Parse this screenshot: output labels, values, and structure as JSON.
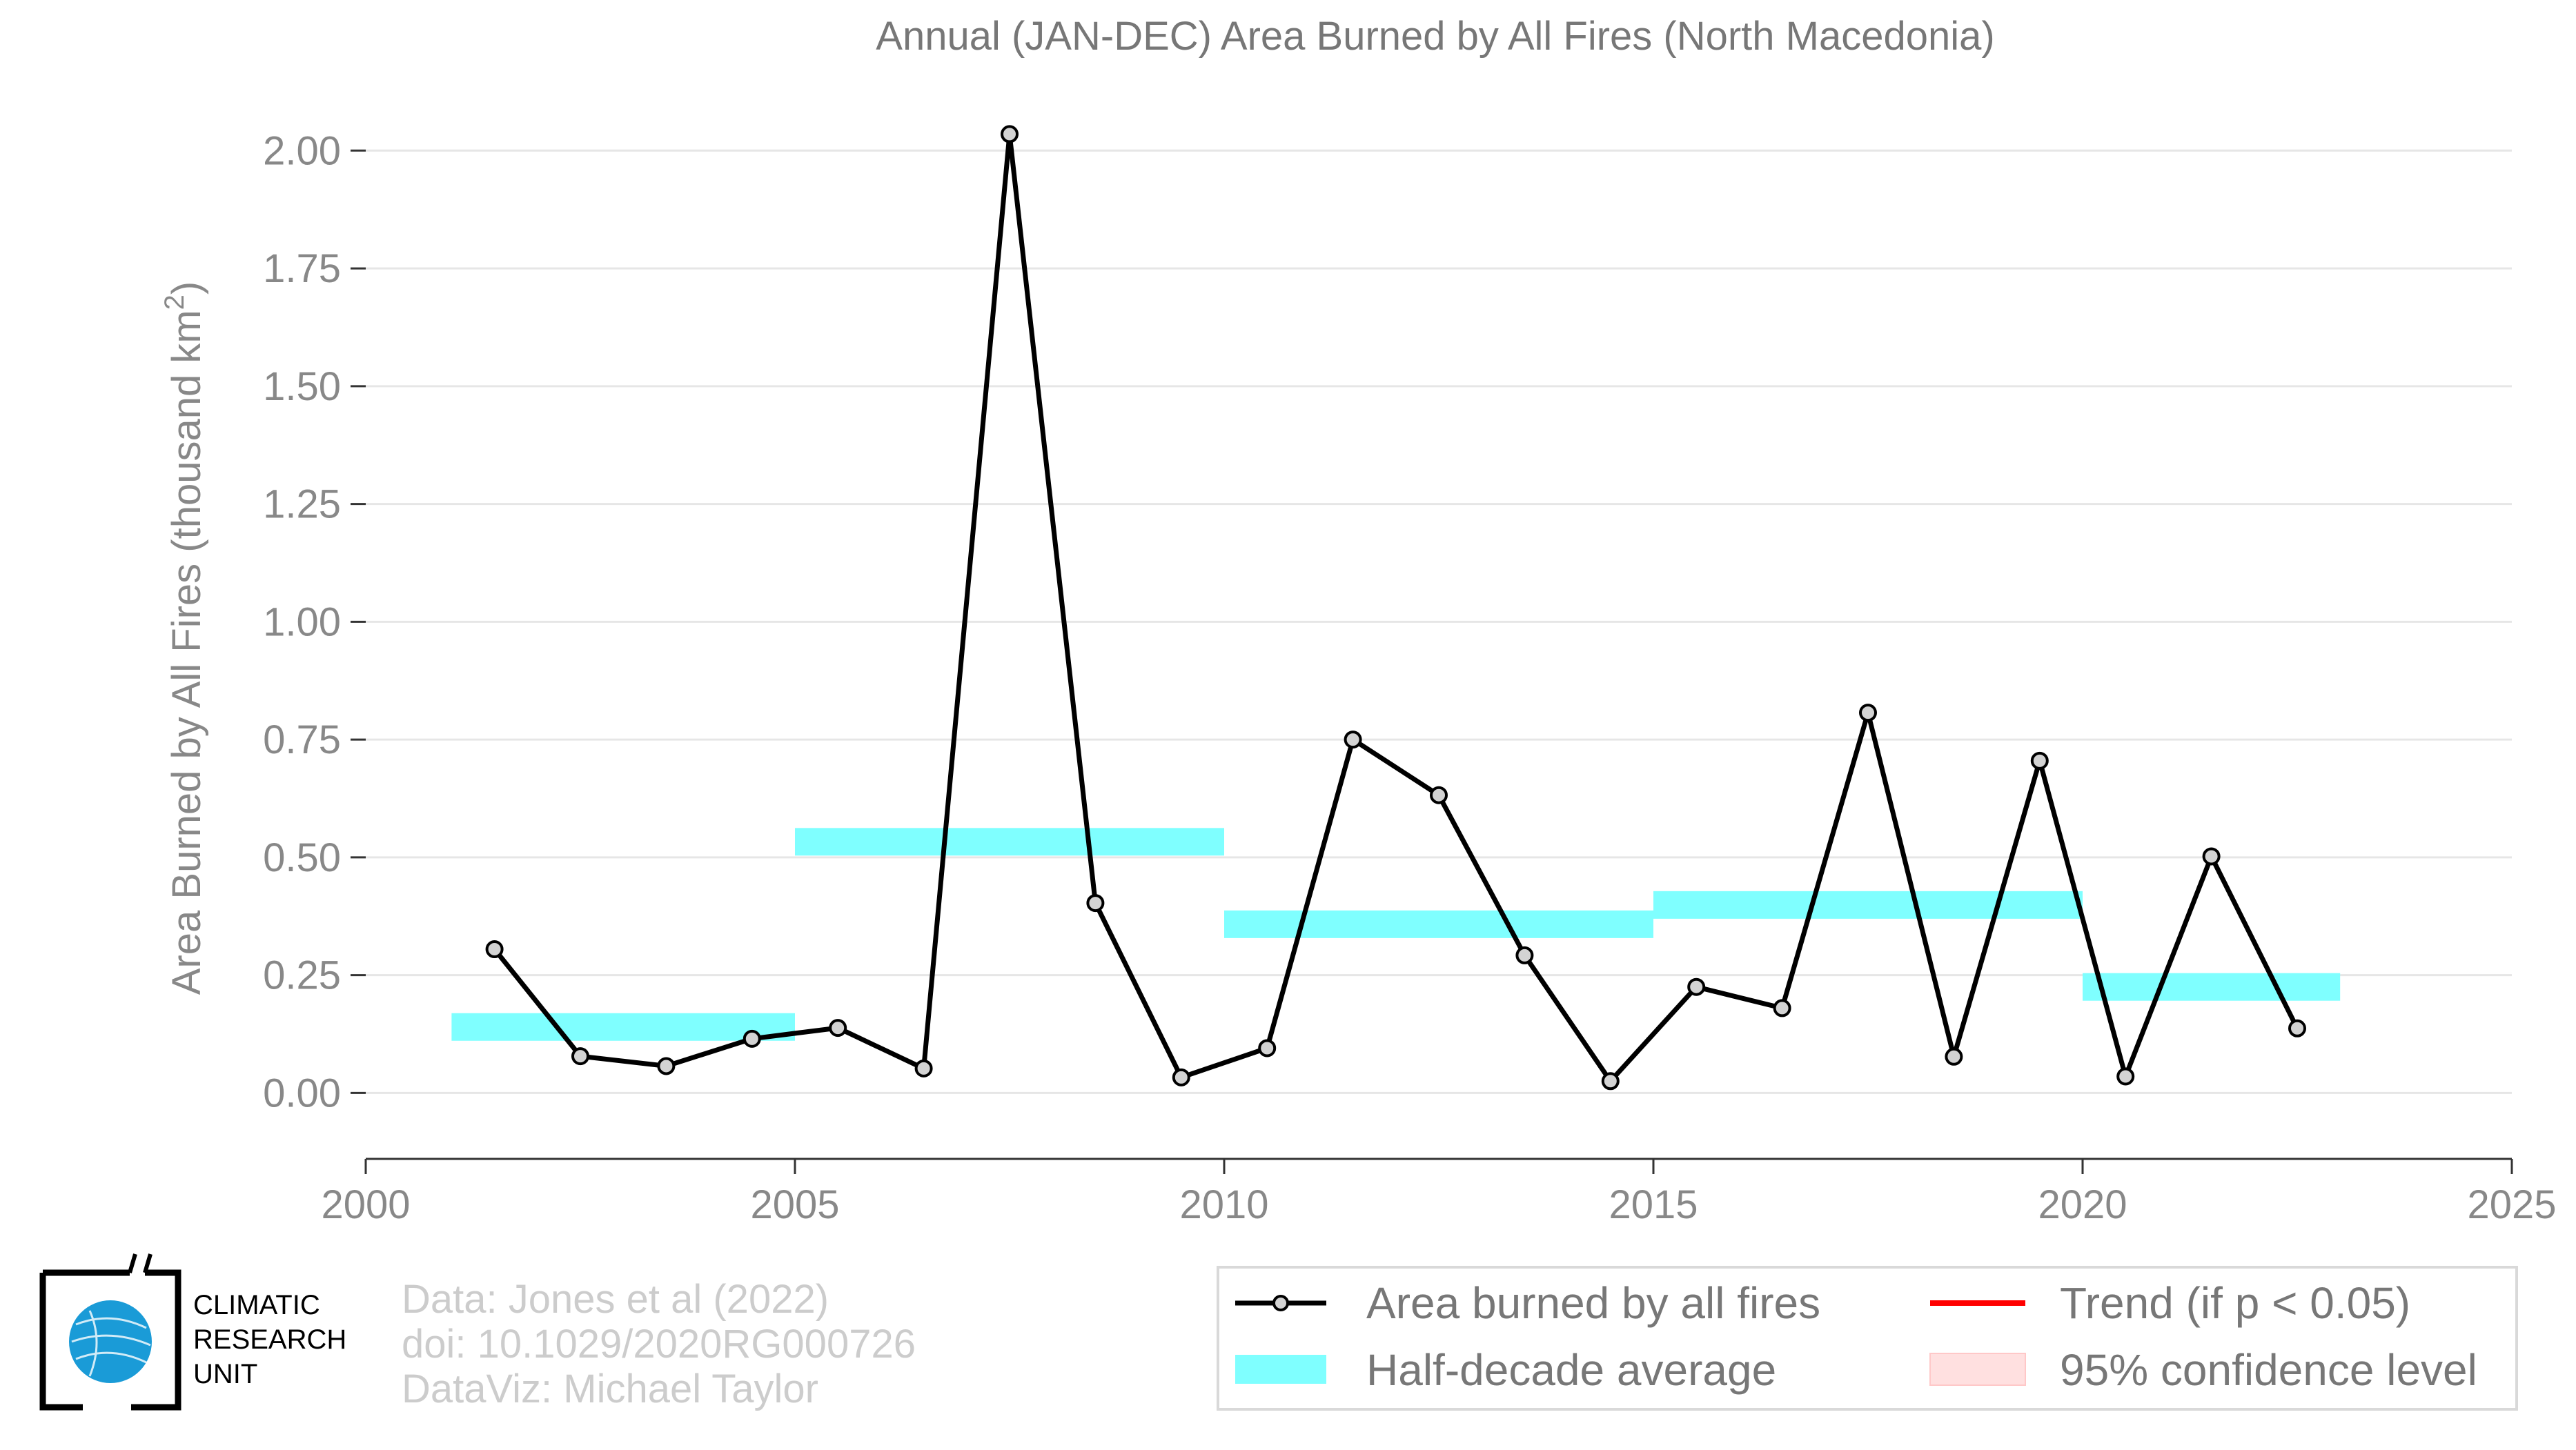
{
  "chart_data": {
    "type": "line",
    "title": "Annual (JAN-DEC) Area Burned by All Fires (North Macedonia)",
    "ylabel_main": "Area Burned by All Fires (thousand km",
    "ylabel_sup": "2",
    "ylabel_close": ")",
    "xlim": [
      2000,
      2025
    ],
    "ylim": [
      -0.14,
      2.1
    ],
    "x_ticks": [
      2000,
      2005,
      2010,
      2015,
      2020,
      2025
    ],
    "x_tick_labels": [
      "2000",
      "2005",
      "2010",
      "2015",
      "2020",
      "2025"
    ],
    "y_ticks": [
      0,
      0.25,
      0.5,
      0.75,
      1.0,
      1.25,
      1.5,
      1.75,
      2.0
    ],
    "y_tick_labels": [
      "0.00",
      "0.25",
      "0.50",
      "0.75",
      "1.00",
      "1.25",
      "1.50",
      "1.75",
      "2.00"
    ],
    "grid": true,
    "series": [
      {
        "name": "Area burned by all fires",
        "color": "#000000",
        "marker_fill": "#d3d3d3",
        "points": [
          {
            "x": 2001.5,
            "y": 0.305
          },
          {
            "x": 2002.5,
            "y": 0.078
          },
          {
            "x": 2003.5,
            "y": 0.057
          },
          {
            "x": 2004.5,
            "y": 0.115
          },
          {
            "x": 2005.5,
            "y": 0.138
          },
          {
            "x": 2006.5,
            "y": 0.052
          },
          {
            "x": 2007.5,
            "y": 2.035
          },
          {
            "x": 2008.5,
            "y": 0.403
          },
          {
            "x": 2009.5,
            "y": 0.033
          },
          {
            "x": 2010.5,
            "y": 0.095
          },
          {
            "x": 2011.5,
            "y": 0.75
          },
          {
            "x": 2012.5,
            "y": 0.632
          },
          {
            "x": 2013.5,
            "y": 0.292
          },
          {
            "x": 2014.5,
            "y": 0.025
          },
          {
            "x": 2015.5,
            "y": 0.225
          },
          {
            "x": 2016.5,
            "y": 0.18
          },
          {
            "x": 2017.5,
            "y": 0.807
          },
          {
            "x": 2018.5,
            "y": 0.077
          },
          {
            "x": 2019.5,
            "y": 0.705
          },
          {
            "x": 2020.5,
            "y": 0.035
          },
          {
            "x": 2021.5,
            "y": 0.502
          },
          {
            "x": 2022.5,
            "y": 0.137
          }
        ]
      },
      {
        "name": "Half-decade average",
        "color": "#7fffff",
        "segments": [
          {
            "x_start": 2001,
            "x_end": 2005,
            "y": 0.14
          },
          {
            "x_start": 2005,
            "x_end": 2010,
            "y": 0.533
          },
          {
            "x_start": 2010,
            "x_end": 2015,
            "y": 0.358
          },
          {
            "x_start": 2015,
            "x_end": 2020,
            "y": 0.399
          },
          {
            "x_start": 2020,
            "x_end": 2023,
            "y": 0.225
          }
        ]
      }
    ],
    "legend": {
      "placement": "bottom-right",
      "entries": [
        {
          "label": "Area burned by all fires",
          "kind": "line-marker",
          "color": "#000000"
        },
        {
          "label": "Trend (if p < 0.05)",
          "kind": "line",
          "color": "#ff0000"
        },
        {
          "label": "Half-decade average",
          "kind": "band",
          "color": "#7fffff"
        },
        {
          "label": "95% confidence level",
          "kind": "fill",
          "color": "#ffe0e0"
        }
      ]
    }
  },
  "credits": {
    "line1": "Data: Jones et al (2022)",
    "line2": "doi: 10.1029/2020RG000726",
    "line3": "DataViz: Michael Taylor"
  },
  "logo": {
    "line1": "CLIMATIC",
    "line2": "RESEARCH",
    "line3": "UNIT",
    "globe_color": "#1a9bd7"
  }
}
